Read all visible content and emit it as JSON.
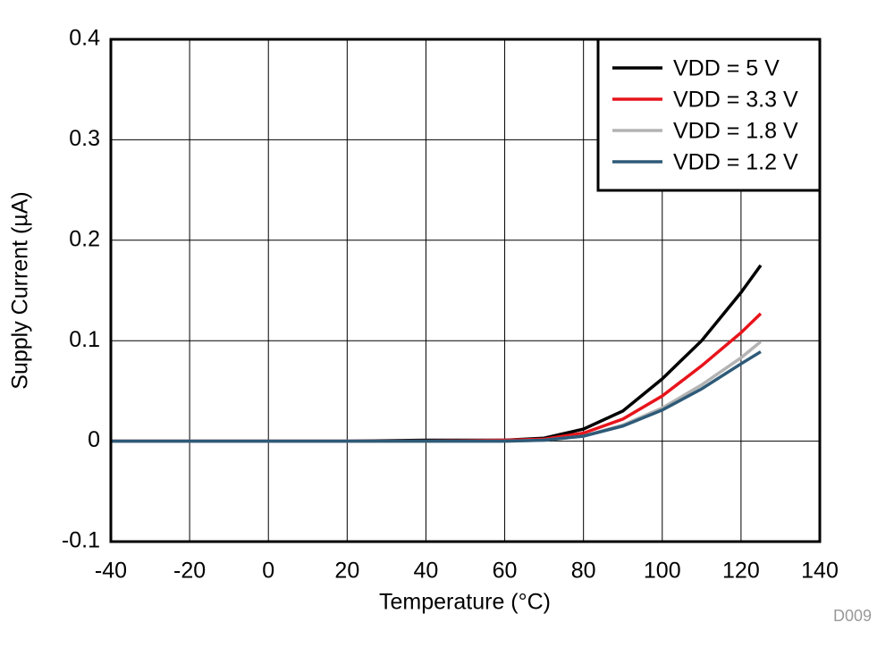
{
  "chart_data": {
    "type": "line",
    "x_label": "Temperature (°C)",
    "y_label": "Supply Current (µA)",
    "annotation": "D009",
    "x": [
      -40,
      -20,
      0,
      20,
      40,
      60,
      70,
      80,
      90,
      100,
      110,
      120,
      125
    ],
    "series": [
      {
        "name": "VDD = 5 V",
        "color": "#000000",
        "values": [
          0,
          0,
          0,
          0,
          0.001,
          0.001,
          0.003,
          0.012,
          0.03,
          0.062,
          0.1,
          0.148,
          0.175
        ]
      },
      {
        "name": "VDD = 3.3 V",
        "color": "#e8141b",
        "values": [
          0,
          0,
          0,
          0,
          0,
          0.001,
          0.002,
          0.008,
          0.022,
          0.045,
          0.075,
          0.108,
          0.127
        ]
      },
      {
        "name": "VDD = 1.8 V",
        "color": "#b3b3b3",
        "values": [
          0,
          0,
          0,
          0,
          0,
          0,
          0.001,
          0.005,
          0.016,
          0.033,
          0.056,
          0.083,
          0.099
        ]
      },
      {
        "name": "VDD = 1.2 V",
        "color": "#2e5a78",
        "values": [
          0,
          0,
          0,
          0,
          0,
          0,
          0.001,
          0.005,
          0.015,
          0.031,
          0.052,
          0.077,
          0.089
        ]
      }
    ],
    "xlim": [
      -40,
      140
    ],
    "xticks": [
      -40,
      -20,
      0,
      20,
      40,
      60,
      80,
      100,
      120,
      140
    ],
    "ylim": [
      -0.1,
      0.4
    ],
    "yticks": [
      -0.1,
      0,
      0.1,
      0.2,
      0.3,
      0.4
    ],
    "grid": true,
    "legend": "top-right"
  }
}
